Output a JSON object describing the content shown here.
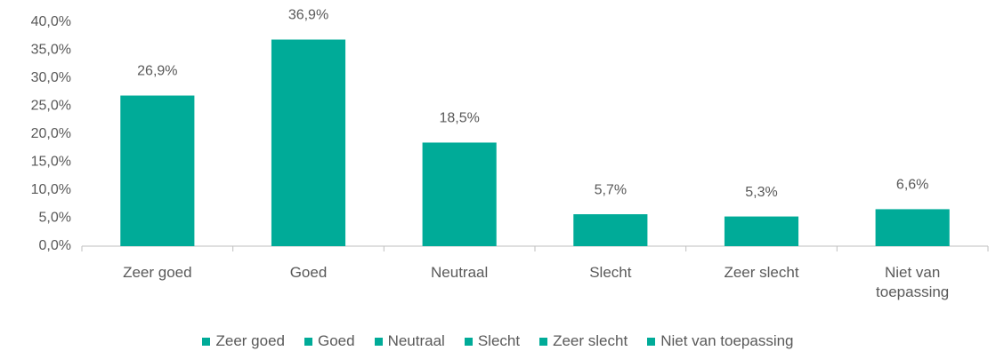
{
  "chart_data": {
    "type": "bar",
    "categories": [
      "Zeer goed",
      "Goed",
      "Neutraal",
      "Slecht",
      "Zeer slecht",
      "Niet van toepassing"
    ],
    "values": [
      26.9,
      36.9,
      18.5,
      5.7,
      5.3,
      6.6
    ],
    "value_labels": [
      "26,9%",
      "36,9%",
      "18,5%",
      "5,7%",
      "5,3%",
      "6,6%"
    ],
    "color": "#00ab98",
    "ylim": [
      0,
      40
    ],
    "yticks": [
      {
        "value": 0,
        "label": "0,0%"
      },
      {
        "value": 5,
        "label": "5,0%"
      },
      {
        "value": 10,
        "label": "10,0%"
      },
      {
        "value": 15,
        "label": "15,0%"
      },
      {
        "value": 20,
        "label": "20,0%"
      },
      {
        "value": 25,
        "label": "25,0%"
      },
      {
        "value": 30,
        "label": "30,0%"
      },
      {
        "value": 35,
        "label": "35,0%"
      },
      {
        "value": 40,
        "label": "40,0%"
      }
    ],
    "grid": false,
    "legend": "bottom"
  }
}
